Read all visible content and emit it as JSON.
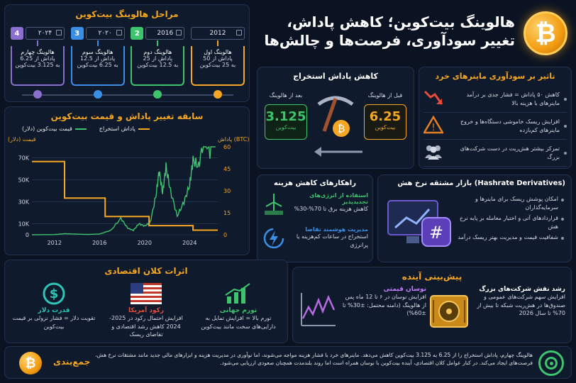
{
  "header": {
    "title_line1": "هالوینگ بیت‌کوین؛ کاهش پاداش،",
    "title_line2": "تغییر سودآوری، فرصت‌ها و چالش‌ها",
    "coin_symbol": "₿"
  },
  "stages": {
    "title": "مراحل هالوینگ بیت‌کوین",
    "items": [
      {
        "num": "4",
        "year": "۲۰۲۴",
        "name": "هالوینگ چهارم",
        "from": "پاداش از 6.25",
        "to": "به 3.125 بیت‌کوین",
        "color": "#8a6fd1"
      },
      {
        "num": "3",
        "year": "۲۰۲۰",
        "name": "هالوینگ سوم",
        "from": "پاداش از 12.5",
        "to": "به 6.25 بیت‌کوین",
        "color": "#3a8ee6"
      },
      {
        "num": "2",
        "year": "2016",
        "name": "هالوینگ دوم",
        "from": "پاداش از 25",
        "to": "به 12.5 بیت‌کوین",
        "color": "#3ec46d"
      },
      {
        "num": "",
        "year": "2012",
        "name": "هالوینگ اول",
        "from": "پاداش از 50",
        "to": "به 25 بیت‌کوین",
        "color": "#f5a623"
      }
    ]
  },
  "reward": {
    "title": "کاهش پاداش استخراج",
    "before_label": "قبل از هالوینگ",
    "before_value": "6.25",
    "before_unit": "بیت‌کوین",
    "after_label": "بعد از هالوینگ",
    "after_value": "3.125",
    "after_unit": "بیت‌کوین"
  },
  "impact": {
    "title": "تاثیر بر سودآوری ماینرهای خرد",
    "items": [
      {
        "text": "کاهش ۵۰ پاداش = فشار جدی بر درآمد ماینرهای با هزینه بالا",
        "icon": "trend-down-icon"
      },
      {
        "text": "افزایش ریسک خاموشی دستگاه‌ها و خروج ماینرهای کم‌بازده",
        "icon": "warning-icon"
      },
      {
        "text": "تمرکز بیشتر هش‌ریت در دست شرکت‌های بزرگ",
        "icon": "people-icon"
      }
    ]
  },
  "chart_panel": {
    "title": "سابقه تغییر پاداش و قیمت بیت‌کوین",
    "legend_price": "قیمت بیت‌کوین (دلار)",
    "legend_reward": "پاداش استخراج",
    "ylabel_left": "قیمت (دلار)",
    "ylabel_right": "پاداش (BTC)"
  },
  "chart_data": {
    "type": "line",
    "x_ticks": [
      "2012",
      "2016",
      "2020",
      "2024"
    ],
    "y_left_ticks": [
      "0",
      "10K",
      "30K",
      "50K",
      "70K"
    ],
    "y_left_values": [
      0,
      10000,
      30000,
      50000,
      70000
    ],
    "y_right_ticks": [
      "0",
      "15",
      "30",
      "45",
      "60"
    ],
    "y_right_values": [
      0,
      15,
      30,
      45,
      60
    ],
    "xlim": [
      2010,
      2026.5
    ],
    "ylim_left": [
      0,
      80000
    ],
    "ylim_right": [
      0,
      60
    ],
    "series": [
      {
        "name": "قیمت بیت‌کوین (دلار)",
        "axis": "left",
        "color": "#3ec46d",
        "x": [
          2010,
          2012,
          2013,
          2014,
          2015,
          2016,
          2017,
          2017.9,
          2018.5,
          2019,
          2019.5,
          2020,
          2020.5,
          2021,
          2021.3,
          2021.6,
          2021.9,
          2022.3,
          2022.9,
          2023.5,
          2024,
          2024.3,
          2024.8,
          2025.3,
          2025.8,
          2026.3
        ],
        "y": [
          0,
          200,
          1000,
          600,
          300,
          700,
          4000,
          15000,
          6000,
          4000,
          10000,
          8000,
          11000,
          35000,
          58000,
          38000,
          62000,
          40000,
          17000,
          30000,
          45000,
          68000,
          62000,
          90000,
          75000,
          100000
        ]
      },
      {
        "name": "پاداش استخراج",
        "axis": "right",
        "color": "#f5a623",
        "step": true,
        "x": [
          2010,
          2012.9,
          2012.9,
          2016.5,
          2016.5,
          2020.4,
          2020.4,
          2024.3,
          2024.3,
          2026.5
        ],
        "y": [
          50,
          50,
          25,
          25,
          12.5,
          12.5,
          6.25,
          6.25,
          3.125,
          3.125
        ]
      }
    ]
  },
  "derivatives": {
    "title": "بازار مشتقه نرخ هش (Hashrate Derivatives)",
    "items": [
      "امکان پوشش ریسک برای ماینرها و سرمایه‌گذاران",
      "قراردادهای آتی و اختیار معامله بر پایه نرخ هش",
      "شفافیت قیمت و مدیریت بهتر ریسک درآمد"
    ]
  },
  "solutions": {
    "title": "راهکارهای کاهش هزینه",
    "items": [
      {
        "head": "استفاده از انرژی‌های تجدیدپذیر",
        "body": "کاهش هزینه برق تا 70%-30%",
        "icon": "wind-turbine-icon"
      },
      {
        "head": "مدیریت هوشمند تقاضا",
        "body": "استخراج در ساعات کم‌هزینه یا پرانرژی",
        "icon": "smart-energy-icon"
      }
    ]
  },
  "macro": {
    "title": "اثرات کلان اقتصادی",
    "items": [
      {
        "head": "تورم جهانی",
        "body": "تورم بالا = افزایش تمایل به دارایی‌های سخت مانند بیت‌کوین",
        "icon": "growth-chart-icon"
      },
      {
        "head": "رکود آمریکا",
        "body": "افزایش احتمال رکود در 2025-2024 کاهش رشد اقتصادی و تقاضای ریسک",
        "icon": "us-flag-icon"
      },
      {
        "head": "قدرت دلار",
        "body": "تقویت دلار = فشار نزولی بر قیمت بیت‌کوین",
        "icon": "dollar-coin-icon"
      }
    ]
  },
  "forecast": {
    "title": "پیش‌بینی آینده",
    "volatility_head": "نوسان قیمتی",
    "volatility_body": "افزایش نوسان در ۶ تا 12 ماه پس از هالوینگ (دامنه محتمل: ±30% تا ±60%)",
    "corp_head": "رشد نقش شرکت‌های بزرگ",
    "corp_body": "افزایش سهم شرکت‌های عمومی و صندوق‌ها در هش‌ریت شبکه تا بیش از 70% تا سال 2026"
  },
  "summary": {
    "label": "جمع‌بندی",
    "text": "هالوینگ چهارم، پاداش استخراج را از 6.25 به 3.125 بیت‌کوین کاهش می‌دهد. ماینرهای خرد با فشار هزینه مواجه می‌شوند، اما نوآوری در مدیریت هزینه و ابزارهای مالی جدید مانند مشتقات نرخ هش، فرصت‌های ایجاد می‌کند. در کنار عوامل کلان اقتصادی، آینده بیت‌کوین با نوسان همراه است اما روند بلندمدت همچنان صعودی ارزیابی می‌شود."
  }
}
